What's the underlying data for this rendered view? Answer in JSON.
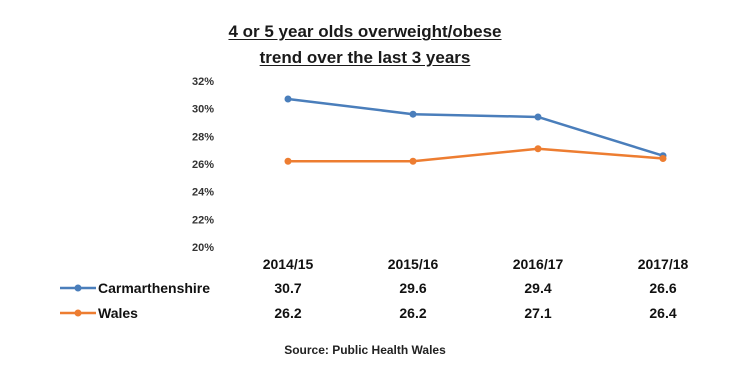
{
  "chart_data": {
    "type": "line",
    "title_lines": [
      "4 or 5 year olds overweight/obese",
      "trend over the last 3 years"
    ],
    "categories": [
      "2014/15",
      "2015/16",
      "2016/17",
      "2017/18"
    ],
    "series": [
      {
        "name": "Carmarthenshire",
        "values": [
          30.7,
          29.6,
          29.4,
          26.6
        ],
        "color": "#4a7ebb"
      },
      {
        "name": "Wales",
        "values": [
          26.2,
          26.2,
          27.1,
          26.4
        ],
        "color": "#ed7d31"
      }
    ],
    "y_ticks": [
      "32%",
      "30%",
      "28%",
      "26%",
      "24%",
      "22%",
      "20%"
    ],
    "ylim": [
      20,
      32
    ],
    "grid": false,
    "legend": "data-table",
    "source": "Source: Public Health Wales"
  }
}
